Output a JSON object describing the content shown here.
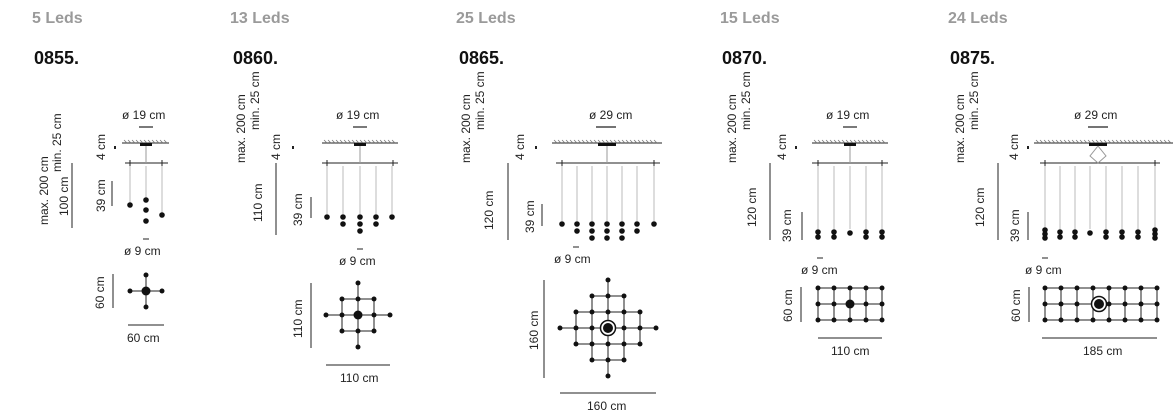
{
  "products": [
    {
      "leds": "5 Leds",
      "model": "0855.",
      "max": "max. 200 cm",
      "min": "min. 25 cm",
      "canopy": "ø 19 cm",
      "gap": "4 cm",
      "drop": "100 cm",
      "cluster": "39 cm",
      "led": "ø 9 cm",
      "plan_h": "60 cm",
      "plan_w": "60 cm"
    },
    {
      "leds": "13 Leds",
      "model": "0860.",
      "max": "max. 200 cm",
      "min": "min. 25 cm",
      "canopy": "ø 19 cm",
      "gap": "4 cm",
      "drop": "110 cm",
      "cluster": "39 cm",
      "led": "ø 9 cm",
      "plan_h": "110 cm",
      "plan_w": "110 cm"
    },
    {
      "leds": "25 Leds",
      "model": "0865.",
      "max": "max. 200 cm",
      "min": "min. 25 cm",
      "canopy": "ø 29 cm",
      "gap": "4 cm",
      "drop": "120 cm",
      "cluster": "39 cm",
      "led": "ø 9 cm",
      "plan_h": "160 cm",
      "plan_w": "160 cm"
    },
    {
      "leds": "15 Leds",
      "model": "0870.",
      "max": "max. 200 cm",
      "min": "min. 25 cm",
      "canopy": "ø 19 cm",
      "gap": "4 cm",
      "drop": "120 cm",
      "cluster": "39 cm",
      "led": "ø 9 cm",
      "plan_h": "60 cm",
      "plan_w": "110 cm"
    },
    {
      "leds": "24 Leds",
      "model": "0875.",
      "max": "max. 200 cm",
      "min": "min. 25 cm",
      "canopy": "ø 29 cm",
      "gap": "4 cm",
      "drop": "120 cm",
      "cluster": "39 cm",
      "led": "ø 9 cm",
      "plan_h": "60 cm",
      "plan_w": "185 cm"
    }
  ]
}
